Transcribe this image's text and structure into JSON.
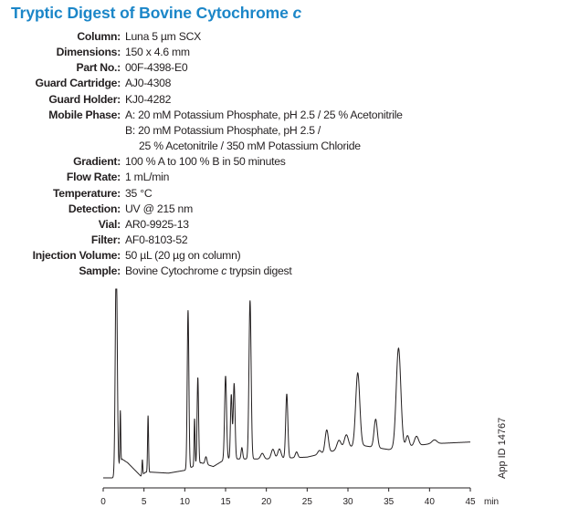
{
  "title": {
    "text": "Tryptic Digest of Bovine Cytochrome ",
    "italic_suffix": "c"
  },
  "conditions": [
    {
      "label": "Column:",
      "value": "Luna 5 µm SCX"
    },
    {
      "label": "Dimensions:",
      "value": "150 x 4.6 mm"
    },
    {
      "label": "Part No.:",
      "value": "00F-4398-E0"
    },
    {
      "label": "Guard Cartridge:",
      "value": "AJ0-4308"
    },
    {
      "label": "Guard Holder:",
      "value": "KJ0-4282"
    },
    {
      "label": "Mobile Phase:",
      "value": "A: 20 mM Potassium Phosphate, pH 2.5 / 25 % Acetonitrile",
      "value2": "B: 20 mM Potassium Phosphate, pH 2.5 /",
      "value3": "25 % Acetonitrile / 350 mM Potassium Chloride"
    },
    {
      "label": "Gradient:",
      "value": "100 % A to 100 % B in 50 minutes"
    },
    {
      "label": "Flow Rate:",
      "value": "1 mL/min"
    },
    {
      "label": "Temperature:",
      "value": "35 °C"
    },
    {
      "label": "Detection:",
      "value": "UV @ 215 nm"
    },
    {
      "label": "Vial:",
      "value": "AR0-9925-13"
    },
    {
      "label": "Filter:",
      "value": "AF0-8103-52"
    },
    {
      "label": "Injection Volume:",
      "value": "50 µL (20 µg on column)"
    },
    {
      "label": "Sample:",
      "value": "Bovine Cytochrome ",
      "value_italic": "c",
      "value_suffix": " trypsin digest"
    }
  ],
  "app_id": "App ID 14767",
  "chart_data": {
    "type": "line",
    "xlabel": "min",
    "xlim": [
      0,
      45
    ],
    "xticks": [
      "0",
      "5",
      "10",
      "15",
      "20",
      "25",
      "30",
      "35",
      "40",
      "45"
    ],
    "ylim": [
      0,
      100
    ],
    "y_axis_shown": false,
    "grid": false,
    "line_color": "#231f20",
    "baseline": [
      [
        0,
        0
      ],
      [
        1.4,
        0
      ],
      [
        2.3,
        10
      ],
      [
        3,
        8
      ],
      [
        4.6,
        1
      ],
      [
        5.2,
        3
      ],
      [
        6,
        3
      ],
      [
        8,
        2.5
      ],
      [
        10,
        4
      ],
      [
        12,
        8
      ],
      [
        13.5,
        6
      ],
      [
        15,
        10
      ],
      [
        20,
        10
      ],
      [
        25,
        11
      ],
      [
        30,
        16
      ],
      [
        32,
        17
      ],
      [
        35,
        15
      ],
      [
        40,
        18
      ],
      [
        45,
        19
      ]
    ],
    "peaks": [
      {
        "t": 1.6,
        "h": 115,
        "w": 0.12
      },
      {
        "t": 2.1,
        "h": 28,
        "w": 0.05
      },
      {
        "t": 4.8,
        "h": 8,
        "w": 0.05
      },
      {
        "t": 5.5,
        "h": 30,
        "w": 0.06
      },
      {
        "t": 10.4,
        "h": 84,
        "w": 0.1
      },
      {
        "t": 11.2,
        "h": 25,
        "w": 0.06
      },
      {
        "t": 11.6,
        "h": 46,
        "w": 0.09
      },
      {
        "t": 12.6,
        "h": 4,
        "w": 0.12
      },
      {
        "t": 15.0,
        "h": 44,
        "w": 0.12
      },
      {
        "t": 15.7,
        "h": 34,
        "w": 0.1
      },
      {
        "t": 16.05,
        "h": 40,
        "w": 0.11
      },
      {
        "t": 17.0,
        "h": 6,
        "w": 0.1
      },
      {
        "t": 18.0,
        "h": 84,
        "w": 0.13
      },
      {
        "t": 19.5,
        "h": 3,
        "w": 0.2
      },
      {
        "t": 20.8,
        "h": 5,
        "w": 0.2
      },
      {
        "t": 21.6,
        "h": 5,
        "w": 0.2
      },
      {
        "t": 22.5,
        "h": 34,
        "w": 0.13
      },
      {
        "t": 23.7,
        "h": 3,
        "w": 0.15
      },
      {
        "t": 26.5,
        "h": 2,
        "w": 0.2
      },
      {
        "t": 27.4,
        "h": 12,
        "w": 0.2
      },
      {
        "t": 28.9,
        "h": 5,
        "w": 0.25
      },
      {
        "t": 29.8,
        "h": 7,
        "w": 0.25
      },
      {
        "t": 31.2,
        "h": 39,
        "w": 0.25
      },
      {
        "t": 33.4,
        "h": 15,
        "w": 0.2
      },
      {
        "t": 36.2,
        "h": 53,
        "w": 0.28
      },
      {
        "t": 37.3,
        "h": 6,
        "w": 0.2
      },
      {
        "t": 38.4,
        "h": 5,
        "w": 0.25
      },
      {
        "t": 40.6,
        "h": 2,
        "w": 0.3
      }
    ]
  }
}
